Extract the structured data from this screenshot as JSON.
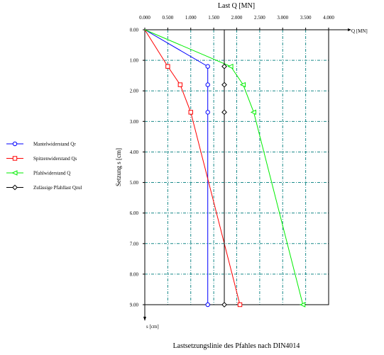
{
  "chart_data": {
    "type": "line",
    "title": "Lastsetzungslinie des Pfahles nach DIN4014",
    "x_axis_title": "Last Q [MN]",
    "x_axis_end_label": "Q [MN]",
    "y_axis_title": "Setzung s [cm]",
    "y_axis_end_label": "s [cm]",
    "xlim": [
      0,
      4
    ],
    "ylim": [
      0,
      9
    ],
    "x_ticks": [
      "0.000",
      "0.500",
      "1.000",
      "1.500",
      "2.000",
      "2.500",
      "3.000",
      "3.500",
      "4.000"
    ],
    "y_ticks": [
      "0.00",
      "1.00",
      "2.00",
      "3.00",
      "4.00",
      "5.00",
      "6.00",
      "7.00",
      "8.00",
      "9.00"
    ],
    "grid": true,
    "legend_position": "left",
    "series": [
      {
        "name": "Mantelwiderstand Qr",
        "color": "#0000ff",
        "marker": "circle",
        "points": [
          [
            0,
            0
          ],
          [
            1.37,
            1.2
          ],
          [
            1.37,
            1.8
          ],
          [
            1.37,
            2.7
          ],
          [
            1.37,
            9.0
          ]
        ]
      },
      {
        "name": "Spitzenwiderstand Qs",
        "color": "#ff0000",
        "marker": "square",
        "points": [
          [
            0,
            0
          ],
          [
            0.5,
            1.2
          ],
          [
            0.77,
            1.8
          ],
          [
            1.0,
            2.7
          ],
          [
            2.07,
            9.0
          ]
        ]
      },
      {
        "name": "Pfahlwiderstand Q",
        "color": "#00ee00",
        "marker": "triangle-left",
        "points": [
          [
            0,
            0
          ],
          [
            1.87,
            1.2
          ],
          [
            2.14,
            1.8
          ],
          [
            2.37,
            2.7
          ],
          [
            3.44,
            9.0
          ]
        ]
      },
      {
        "name": "Zulässige Pfahllast Qzul",
        "color": "#000000",
        "marker": "diamond",
        "points": [
          [
            1.73,
            0
          ],
          [
            1.73,
            1.2
          ],
          [
            1.73,
            1.8
          ],
          [
            1.73,
            2.7
          ],
          [
            1.73,
            9.0
          ]
        ]
      }
    ]
  }
}
